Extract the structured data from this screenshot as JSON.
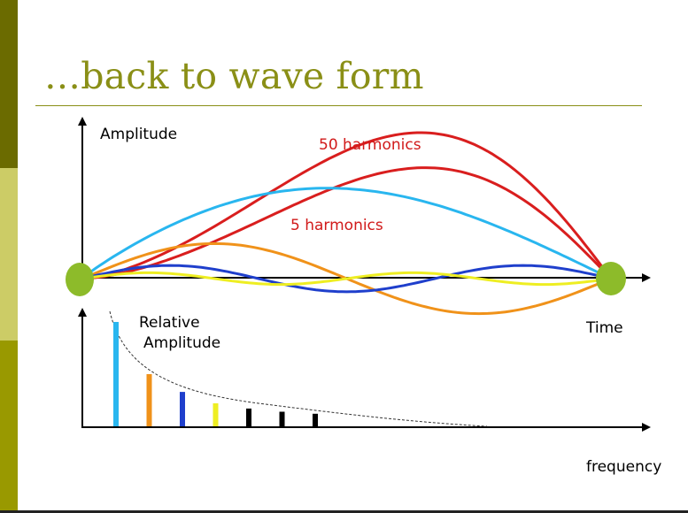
{
  "slide": {
    "title": "…back to wave form",
    "colors": {
      "accent_olive": "#8a8f16",
      "sidebar_dark": "#6b6b00",
      "sidebar_light": "#cccc66",
      "sidebar_mid": "#999900",
      "axis": "#000000"
    }
  },
  "top_plot": {
    "y_axis_label": "Amplitude",
    "x_axis_label": "Time",
    "annotations": {
      "fifty": "50 harmonics",
      "five": "5 harmonics"
    },
    "annotation_color": "#d11a1a",
    "endpoint_color": "#8dbb2a",
    "curves": [
      {
        "name": "red-upper",
        "color": "#d91e1e",
        "amplitude": 1.0,
        "harmonic": 1
      },
      {
        "name": "red-lower",
        "color": "#d91e1e",
        "amplitude": 0.76,
        "harmonic": 1
      },
      {
        "name": "light-blue",
        "color": "#29b6ef",
        "amplitude": 0.62,
        "harmonic": 1
      },
      {
        "name": "orange",
        "color": "#f0921a",
        "amplitude": 0.24,
        "harmonic": 2
      },
      {
        "name": "dark-blue",
        "color": "#1f3fcc",
        "amplitude": 0.09,
        "harmonic": 3
      },
      {
        "name": "yellow",
        "color": "#eeee22",
        "amplitude": 0.04,
        "harmonic": 4
      }
    ]
  },
  "bottom_plot": {
    "y_axis_label_line1": "Relative",
    "y_axis_label_line2": "Amplitude",
    "x_axis_label": "frequency",
    "bars": [
      {
        "name": "harmonic-1",
        "color": "#29b6ef",
        "value": 1.0
      },
      {
        "name": "harmonic-2",
        "color": "#f0921a",
        "value": 0.5
      },
      {
        "name": "harmonic-3",
        "color": "#1f3fcc",
        "value": 0.33
      },
      {
        "name": "harmonic-4",
        "color": "#eeee22",
        "value": 0.22
      },
      {
        "name": "harmonic-5",
        "color": "#000000",
        "value": 0.17
      },
      {
        "name": "harmonic-6",
        "color": "#000000",
        "value": 0.14
      },
      {
        "name": "harmonic-7",
        "color": "#000000",
        "value": 0.12
      }
    ]
  }
}
